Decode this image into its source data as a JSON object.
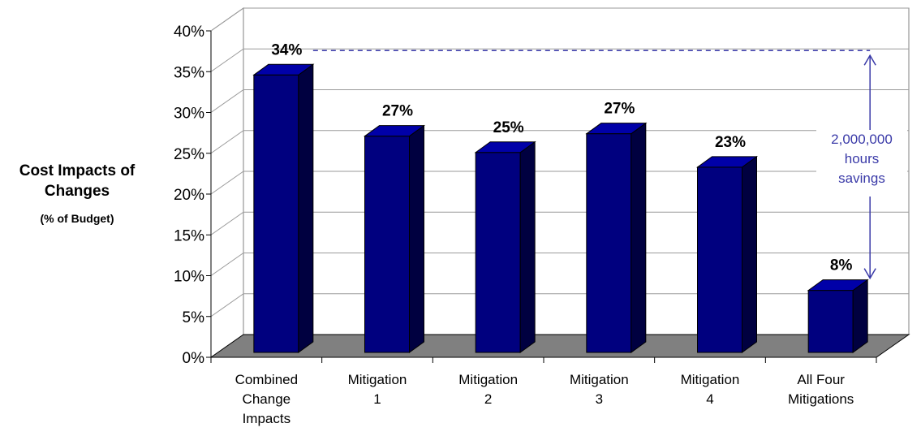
{
  "chart_data": {
    "type": "bar",
    "style": "3d",
    "ylabel": "Cost Impacts of Changes",
    "ylabel_sub": "(% of Budget)",
    "ylim": [
      0,
      40
    ],
    "yticks": [
      "0%",
      "5%",
      "10%",
      "15%",
      "20%",
      "25%",
      "30%",
      "35%",
      "40%"
    ],
    "grid": true,
    "categories": [
      [
        "Combined",
        "Change",
        "Impacts"
      ],
      [
        "Mitigation",
        "1"
      ],
      [
        "Mitigation",
        "2"
      ],
      [
        "Mitigation",
        "3"
      ],
      [
        "Mitigation",
        "4"
      ],
      [
        "All Four",
        "Mitigations"
      ]
    ],
    "values": [
      34,
      26.5,
      24.5,
      26.8,
      22.7,
      7.6
    ],
    "data_labels": [
      "34%",
      "27%",
      "25%",
      "27%",
      "23%",
      "8%"
    ],
    "reference_line": 35,
    "annotation": {
      "lines": [
        "2,000,000",
        "hours",
        "savings"
      ],
      "from": 35,
      "to": 8
    },
    "colors": {
      "bar_front": "#00007f",
      "bar_side": "#000040",
      "bar_top": "#0000a8",
      "floor": "#808080",
      "annotation": "#3a3aa8"
    }
  }
}
